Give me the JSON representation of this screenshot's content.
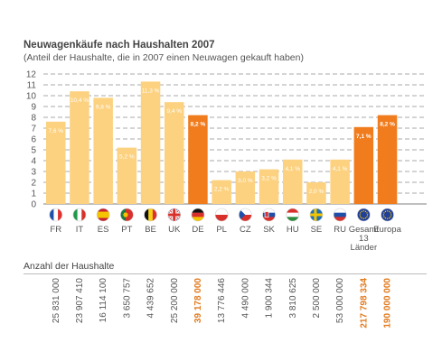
{
  "chart_data": {
    "type": "bar",
    "title": "Neuwagenkäufe nach Haushalten 2007",
    "subtitle": "(Anteil der Haushalte, die in 2007 einen Neuwagen gekauft haben)",
    "ylim": [
      0,
      12
    ],
    "yticks": [
      "0",
      "1",
      "2",
      "3",
      "4",
      "5",
      "6",
      "7",
      "8",
      "9",
      "10",
      "11",
      "12"
    ],
    "grid": true,
    "categories": [
      "FR",
      "IT",
      "ES",
      "PT",
      "BE",
      "UK",
      "DE",
      "PL",
      "CZ",
      "SK",
      "HU",
      "SE",
      "RU",
      "Gesamt 13 Länder",
      "Europa"
    ],
    "category_lines": [
      [
        "FR"
      ],
      [
        "IT"
      ],
      [
        "ES"
      ],
      [
        "PT"
      ],
      [
        "BE"
      ],
      [
        "UK"
      ],
      [
        "DE"
      ],
      [
        "PL"
      ],
      [
        "CZ"
      ],
      [
        "SK"
      ],
      [
        "HU"
      ],
      [
        "SE"
      ],
      [
        "RU"
      ],
      [
        "Gesamt",
        "13",
        "Länder"
      ],
      [
        "Europa"
      ]
    ],
    "values": [
      7.6,
      10.4,
      9.8,
      5.2,
      11.3,
      9.4,
      8.2,
      2.2,
      3.0,
      3.2,
      4.1,
      2.0,
      4.1,
      7.1,
      8.2
    ],
    "value_labels": [
      "7,6 %",
      "10,4 %",
      "9,8 %",
      "5,2 %",
      "11,3 %",
      "9,4 %",
      "8,2 %",
      "2,2 %",
      "3,0 %",
      "3,2 %",
      "4,1 %",
      "2,0 %",
      "4,1 %",
      "7,1 %",
      "8,2 %"
    ],
    "highlighted": [
      false,
      false,
      false,
      false,
      false,
      false,
      true,
      false,
      false,
      false,
      false,
      false,
      false,
      true,
      true
    ]
  },
  "households": {
    "label": "Anzahl der Haushalte",
    "values": [
      "25 831 000",
      "23 907 410",
      "16 114 100",
      "3 650 757",
      "4 439 652",
      "25 200 000",
      "39 178 000",
      "13 776 446",
      "4 490 000",
      "1 900 344",
      "3 810 625",
      "2 500 000",
      "53 000 000",
      "217 798 334",
      "190 000 000"
    ]
  },
  "colors": {
    "bar": "#fcd17f",
    "bar_highlight": "#f07c1d",
    "grid": "#555555",
    "label_on_bar": "#ffffff",
    "highlight_text": "#e27a1e"
  },
  "flags": [
    "flag-fr-icon",
    "flag-it-icon",
    "flag-es-icon",
    "flag-pt-icon",
    "flag-be-icon",
    "flag-uk-icon",
    "flag-de-icon",
    "flag-pl-icon",
    "flag-cz-icon",
    "flag-sk-icon",
    "flag-hu-icon",
    "flag-se-icon",
    "flag-ru-icon",
    "flag-eu-icon",
    "flag-eu-icon"
  ]
}
